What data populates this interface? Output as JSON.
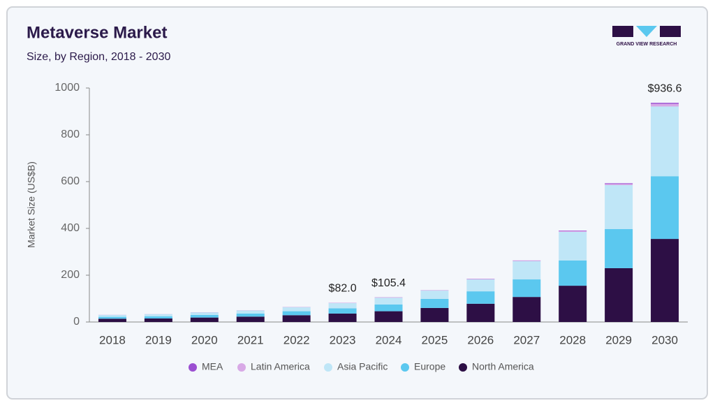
{
  "chart_data": {
    "type": "stacked_bar",
    "title": "Metaverse Market",
    "subtitle": "Size, by Region, 2018 - 2030",
    "brand": "GRAND VIEW RESEARCH",
    "ylabel": "Market Size (US$B)",
    "categories": [
      "2018",
      "2019",
      "2020",
      "2021",
      "2022",
      "2023",
      "2024",
      "2025",
      "2026",
      "2027",
      "2028",
      "2029",
      "2030"
    ],
    "series": [
      {
        "name": "North America",
        "color": "#2d0f45",
        "values": [
          14,
          15,
          19,
          23,
          29,
          36,
          46,
          60,
          78,
          107,
          155,
          230,
          355
        ]
      },
      {
        "name": "Europe",
        "color": "#5bc8ef",
        "values": [
          8,
          9,
          11,
          13,
          17,
          22.5,
          29,
          39,
          53,
          75,
          108,
          167,
          268
        ]
      },
      {
        "name": "Asia Pacific",
        "color": "#bfe6f7",
        "values": [
          8,
          9,
          11,
          13,
          17,
          22,
          28.5,
          35,
          51,
          78,
          122,
          188,
          298
        ]
      },
      {
        "name": "Latin America",
        "color": "#d8a9e6",
        "values": [
          0.3,
          0.3,
          0.4,
          0.5,
          0.7,
          1,
          1.2,
          1,
          1.5,
          2,
          4,
          5,
          11
        ]
      },
      {
        "name": "MEA",
        "color": "#9b4fd1",
        "values": [
          0.2,
          0.2,
          0.3,
          0.3,
          0.4,
          0.5,
          0.7,
          0.7,
          1,
          1,
          2,
          3,
          4.6
        ]
      }
    ],
    "annotations": [
      {
        "category": "2023",
        "label": "$82.0"
      },
      {
        "category": "2024",
        "label": "$105.4"
      },
      {
        "category": "2030",
        "label": "$936.6"
      }
    ],
    "ylim": [
      0,
      1000
    ],
    "yticks": [
      0,
      200,
      400,
      600,
      800,
      1000
    ],
    "grid": false,
    "legend": "bottom"
  }
}
